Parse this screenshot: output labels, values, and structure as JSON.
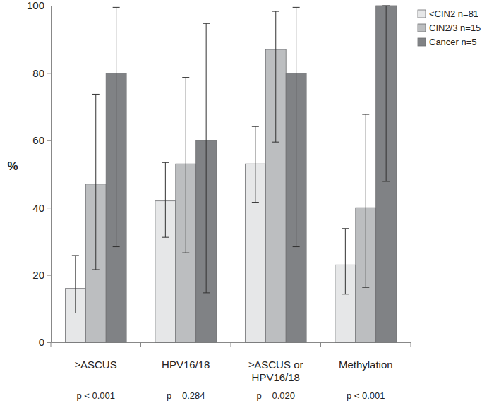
{
  "chart_data": {
    "type": "bar",
    "y_label": "%",
    "categories": [
      "≥ASCUS",
      "HPV16/18",
      "≥ASCUS or HPV16/18",
      "Methylation"
    ],
    "annotations": [
      "p < 0.001",
      "p = 0.284",
      "p = 0.020",
      "p < 0.001"
    ],
    "series": [
      {
        "name": "<CIN2 n=81",
        "color": "#e6e7e8",
        "values": [
          16,
          42,
          53,
          23
        ],
        "ci_low": [
          8.7,
          31.2,
          41.6,
          14.3
        ],
        "ci_high": [
          25.8,
          53.4,
          64.1,
          33.8
        ]
      },
      {
        "name": "CIN2/3 n=15",
        "color": "#bcbec0",
        "values": [
          47,
          53,
          87,
          40
        ],
        "ci_low": [
          21.6,
          26.6,
          59.5,
          16.3
        ],
        "ci_high": [
          73.7,
          78.7,
          98.3,
          67.7
        ]
      },
      {
        "name": "Cancer n=5",
        "color": "#808285",
        "values": [
          80,
          60,
          80,
          100
        ],
        "ci_low": [
          28.4,
          14.7,
          28.4,
          47.8
        ],
        "ci_high": [
          99.5,
          94.7,
          99.5,
          100
        ]
      }
    ],
    "ylim": [
      0,
      100
    ],
    "yticks": [
      0,
      20,
      40,
      60,
      80,
      100
    ],
    "legend": "top-right"
  }
}
